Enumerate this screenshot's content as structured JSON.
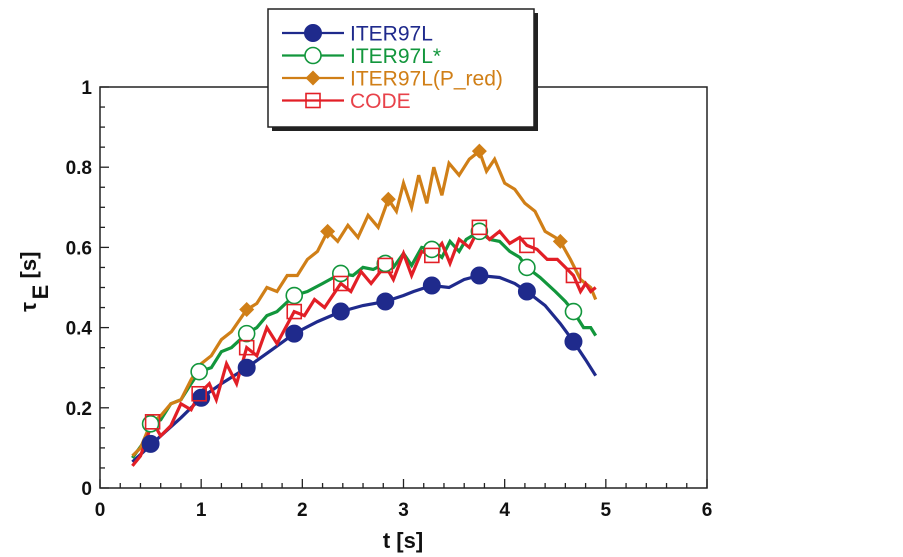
{
  "chart_data": {
    "type": "line",
    "title": "",
    "xlabel": "t [s]",
    "ylabel": "τ_E [s]",
    "ylabel_main": "τ",
    "ylabel_sub": "E",
    "ylabel_unit": "[s]",
    "xlim": [
      0,
      6
    ],
    "ylim": [
      0,
      1
    ],
    "xticks": [
      0,
      1,
      2,
      3,
      4,
      5,
      6
    ],
    "xtick_labels": [
      "0",
      "1",
      "2",
      "3",
      "4",
      "5",
      "6"
    ],
    "yticks": [
      0,
      0.2,
      0.4,
      0.6,
      0.8,
      1
    ],
    "ytick_labels": [
      "0",
      "0.2",
      "0.4",
      "0.6",
      "0.8",
      "1"
    ],
    "grid": false,
    "legend_position": "top-center",
    "series": [
      {
        "name": "ITER97L",
        "color": "#1f2a8c",
        "marker": "filled-circle",
        "line": [
          [
            0.32,
            0.065
          ],
          [
            0.45,
            0.095
          ],
          [
            0.6,
            0.13
          ],
          [
            0.8,
            0.175
          ],
          [
            1.0,
            0.225
          ],
          [
            1.2,
            0.26
          ],
          [
            1.45,
            0.3
          ],
          [
            1.7,
            0.345
          ],
          [
            1.92,
            0.385
          ],
          [
            2.15,
            0.415
          ],
          [
            2.38,
            0.44
          ],
          [
            2.6,
            0.455
          ],
          [
            2.82,
            0.465
          ],
          [
            3.0,
            0.48
          ],
          [
            3.1,
            0.49
          ],
          [
            3.28,
            0.505
          ],
          [
            3.45,
            0.5
          ],
          [
            3.6,
            0.52
          ],
          [
            3.75,
            0.53
          ],
          [
            3.95,
            0.525
          ],
          [
            4.1,
            0.51
          ],
          [
            4.22,
            0.49
          ],
          [
            4.4,
            0.455
          ],
          [
            4.55,
            0.41
          ],
          [
            4.68,
            0.365
          ],
          [
            4.8,
            0.32
          ],
          [
            4.9,
            0.28
          ]
        ],
        "markers": [
          [
            0.5,
            0.11
          ],
          [
            1.0,
            0.225
          ],
          [
            1.45,
            0.3
          ],
          [
            1.92,
            0.385
          ],
          [
            2.38,
            0.44
          ],
          [
            2.82,
            0.465
          ],
          [
            3.28,
            0.505
          ],
          [
            3.75,
            0.53
          ],
          [
            4.22,
            0.49
          ],
          [
            4.68,
            0.365
          ]
        ]
      },
      {
        "name": "ITER97L*",
        "color": "#12963c",
        "marker": "open-circle",
        "line": [
          [
            0.32,
            0.075
          ],
          [
            0.42,
            0.11
          ],
          [
            0.5,
            0.16
          ],
          [
            0.6,
            0.17
          ],
          [
            0.7,
            0.21
          ],
          [
            0.8,
            0.22
          ],
          [
            0.9,
            0.26
          ],
          [
            0.98,
            0.29
          ],
          [
            1.1,
            0.3
          ],
          [
            1.2,
            0.34
          ],
          [
            1.3,
            0.35
          ],
          [
            1.45,
            0.385
          ],
          [
            1.55,
            0.4
          ],
          [
            1.65,
            0.43
          ],
          [
            1.75,
            0.44
          ],
          [
            1.92,
            0.48
          ],
          [
            2.05,
            0.49
          ],
          [
            2.2,
            0.51
          ],
          [
            2.38,
            0.535
          ],
          [
            2.5,
            0.53
          ],
          [
            2.6,
            0.55
          ],
          [
            2.7,
            0.545
          ],
          [
            2.82,
            0.56
          ],
          [
            2.9,
            0.55
          ],
          [
            3.0,
            0.585
          ],
          [
            3.08,
            0.555
          ],
          [
            3.18,
            0.6
          ],
          [
            3.28,
            0.595
          ],
          [
            3.38,
            0.575
          ],
          [
            3.46,
            0.615
          ],
          [
            3.55,
            0.59
          ],
          [
            3.62,
            0.62
          ],
          [
            3.75,
            0.64
          ],
          [
            3.85,
            0.62
          ],
          [
            3.95,
            0.615
          ],
          [
            4.05,
            0.59
          ],
          [
            4.15,
            0.575
          ],
          [
            4.22,
            0.55
          ],
          [
            4.35,
            0.525
          ],
          [
            4.5,
            0.49
          ],
          [
            4.6,
            0.465
          ],
          [
            4.68,
            0.44
          ],
          [
            4.78,
            0.4
          ],
          [
            4.85,
            0.4
          ],
          [
            4.9,
            0.38
          ]
        ],
        "markers": [
          [
            0.5,
            0.16
          ],
          [
            0.98,
            0.29
          ],
          [
            1.45,
            0.385
          ],
          [
            1.92,
            0.48
          ],
          [
            2.38,
            0.535
          ],
          [
            2.82,
            0.56
          ],
          [
            3.28,
            0.595
          ],
          [
            3.75,
            0.64
          ],
          [
            4.22,
            0.55
          ],
          [
            4.68,
            0.44
          ]
        ]
      },
      {
        "name": "ITER97L(P_red)",
        "color": "#d07f17",
        "marker": "filled-diamond",
        "line": [
          [
            0.32,
            0.08
          ],
          [
            0.4,
            0.1
          ],
          [
            0.5,
            0.16
          ],
          [
            0.6,
            0.18
          ],
          [
            0.7,
            0.21
          ],
          [
            0.8,
            0.22
          ],
          [
            0.9,
            0.27
          ],
          [
            1.0,
            0.31
          ],
          [
            1.1,
            0.33
          ],
          [
            1.2,
            0.37
          ],
          [
            1.3,
            0.39
          ],
          [
            1.45,
            0.445
          ],
          [
            1.55,
            0.46
          ],
          [
            1.65,
            0.5
          ],
          [
            1.75,
            0.49
          ],
          [
            1.85,
            0.53
          ],
          [
            1.95,
            0.53
          ],
          [
            2.05,
            0.57
          ],
          [
            2.15,
            0.59
          ],
          [
            2.25,
            0.64
          ],
          [
            2.35,
            0.615
          ],
          [
            2.45,
            0.655
          ],
          [
            2.55,
            0.625
          ],
          [
            2.65,
            0.68
          ],
          [
            2.75,
            0.65
          ],
          [
            2.85,
            0.72
          ],
          [
            2.93,
            0.69
          ],
          [
            3.0,
            0.76
          ],
          [
            3.08,
            0.7
          ],
          [
            3.15,
            0.78
          ],
          [
            3.23,
            0.71
          ],
          [
            3.3,
            0.8
          ],
          [
            3.38,
            0.73
          ],
          [
            3.45,
            0.81
          ],
          [
            3.55,
            0.78
          ],
          [
            3.65,
            0.82
          ],
          [
            3.75,
            0.84
          ],
          [
            3.82,
            0.79
          ],
          [
            3.9,
            0.82
          ],
          [
            4.0,
            0.76
          ],
          [
            4.1,
            0.745
          ],
          [
            4.2,
            0.71
          ],
          [
            4.3,
            0.69
          ],
          [
            4.4,
            0.64
          ],
          [
            4.5,
            0.625
          ],
          [
            4.55,
            0.615
          ],
          [
            4.65,
            0.57
          ],
          [
            4.75,
            0.52
          ],
          [
            4.85,
            0.5
          ],
          [
            4.9,
            0.47
          ]
        ],
        "markers": [
          [
            1.45,
            0.445
          ],
          [
            2.25,
            0.64
          ],
          [
            2.85,
            0.72
          ],
          [
            3.75,
            0.84
          ],
          [
            4.55,
            0.615
          ]
        ]
      },
      {
        "name": "CODE",
        "color": "#e21f26",
        "marker": "open-square",
        "line": [
          [
            0.32,
            0.055
          ],
          [
            0.4,
            0.08
          ],
          [
            0.52,
            0.165
          ],
          [
            0.6,
            0.13
          ],
          [
            0.7,
            0.155
          ],
          [
            0.8,
            0.21
          ],
          [
            0.9,
            0.195
          ],
          [
            0.98,
            0.235
          ],
          [
            1.08,
            0.26
          ],
          [
            1.15,
            0.22
          ],
          [
            1.25,
            0.31
          ],
          [
            1.35,
            0.26
          ],
          [
            1.45,
            0.35
          ],
          [
            1.55,
            0.33
          ],
          [
            1.65,
            0.4
          ],
          [
            1.75,
            0.36
          ],
          [
            1.92,
            0.44
          ],
          [
            2.02,
            0.43
          ],
          [
            2.12,
            0.47
          ],
          [
            2.22,
            0.45
          ],
          [
            2.38,
            0.51
          ],
          [
            2.48,
            0.49
          ],
          [
            2.58,
            0.54
          ],
          [
            2.68,
            0.51
          ],
          [
            2.82,
            0.555
          ],
          [
            2.9,
            0.52
          ],
          [
            3.0,
            0.585
          ],
          [
            3.08,
            0.53
          ],
          [
            3.18,
            0.59
          ],
          [
            3.28,
            0.58
          ],
          [
            3.38,
            0.61
          ],
          [
            3.46,
            0.56
          ],
          [
            3.55,
            0.62
          ],
          [
            3.65,
            0.6
          ],
          [
            3.75,
            0.65
          ],
          [
            3.85,
            0.62
          ],
          [
            3.95,
            0.64
          ],
          [
            4.05,
            0.61
          ],
          [
            4.15,
            0.625
          ],
          [
            4.22,
            0.605
          ],
          [
            4.32,
            0.595
          ],
          [
            4.42,
            0.57
          ],
          [
            4.52,
            0.57
          ],
          [
            4.6,
            0.55
          ],
          [
            4.68,
            0.53
          ],
          [
            4.75,
            0.49
          ],
          [
            4.8,
            0.51
          ],
          [
            4.85,
            0.49
          ],
          [
            4.9,
            0.5
          ]
        ],
        "markers": [
          [
            0.52,
            0.165
          ],
          [
            0.98,
            0.235
          ],
          [
            1.45,
            0.35
          ],
          [
            1.92,
            0.44
          ],
          [
            2.38,
            0.51
          ],
          [
            2.82,
            0.555
          ],
          [
            3.28,
            0.58
          ],
          [
            3.75,
            0.65
          ],
          [
            4.22,
            0.605
          ],
          [
            4.68,
            0.53
          ]
        ]
      }
    ]
  }
}
